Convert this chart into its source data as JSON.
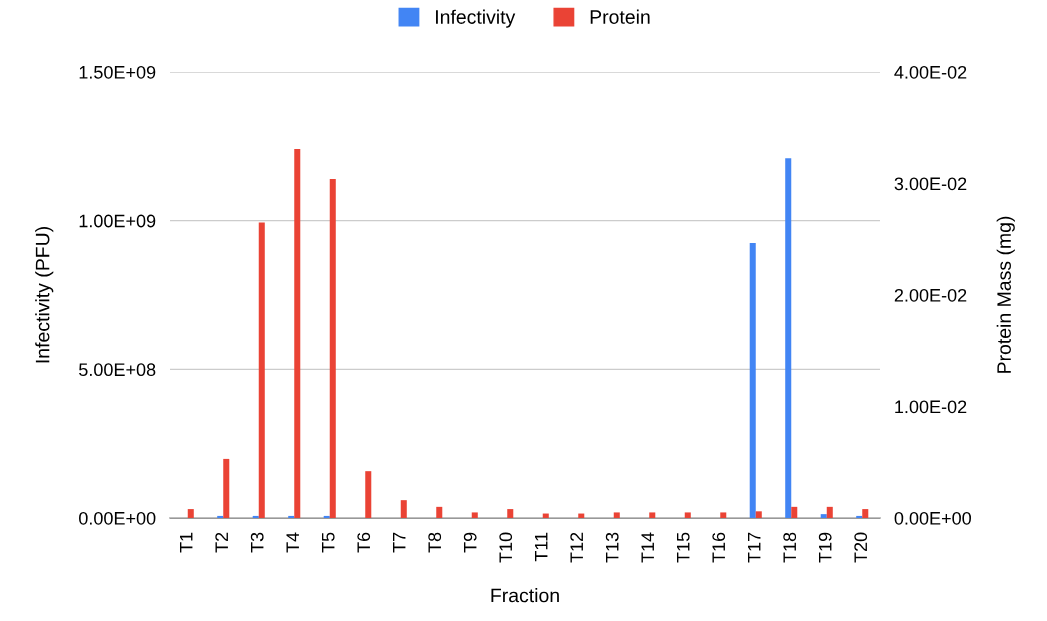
{
  "chart_data": {
    "type": "bar",
    "categories": [
      "T1",
      "T2",
      "T3",
      "T4",
      "T5",
      "T6",
      "T7",
      "T8",
      "T9",
      "T10",
      "T11",
      "T12",
      "T13",
      "T14",
      "T15",
      "T16",
      "T17",
      "T18",
      "T19",
      "T20"
    ],
    "series": [
      {
        "name": "Infectivity",
        "color": "#4285f4",
        "values": [
          0,
          7000000,
          7000000,
          7000000,
          7000000,
          0,
          0,
          0,
          0,
          0,
          0,
          0,
          0,
          0,
          0,
          0,
          925000000,
          1210000000,
          13000000,
          7000000
        ]
      },
      {
        "name": "Protein",
        "color": "#ea4335",
        "axis": "y2",
        "values": [
          0.0008,
          0.0053,
          0.0265,
          0.0331,
          0.0304,
          0.0042,
          0.0016,
          0.001,
          0.0005,
          0.0008,
          0.0004,
          0.0004,
          0.0005,
          0.0005,
          0.0005,
          0.0005,
          0.0006,
          0.001,
          0.001,
          0.0008
        ]
      }
    ],
    "xlabel": "Fraction",
    "ylabel": "Infectivity (PFU)",
    "y2label": "Protein Mass (mg)",
    "ylim": [
      0,
      1500000000
    ],
    "yticks": [
      {
        "value": 0,
        "label": "0.00E+00"
      },
      {
        "value": 500000000,
        "label": "5.00E+08"
      },
      {
        "value": 1000000000,
        "label": "1.00E+09"
      },
      {
        "value": 1500000000,
        "label": "1.50E+09"
      }
    ],
    "y2lim": [
      0,
      0.04
    ],
    "y2ticks": [
      {
        "value": 0,
        "label": "0.00E+00"
      },
      {
        "value": 0.01,
        "label": "1.00E-02"
      },
      {
        "value": 0.02,
        "label": "2.00E-02"
      },
      {
        "value": 0.03,
        "label": "3.00E-02"
      },
      {
        "value": 0.04,
        "label": "4.00E-02"
      }
    ],
    "grid": "y",
    "legend": "top"
  }
}
